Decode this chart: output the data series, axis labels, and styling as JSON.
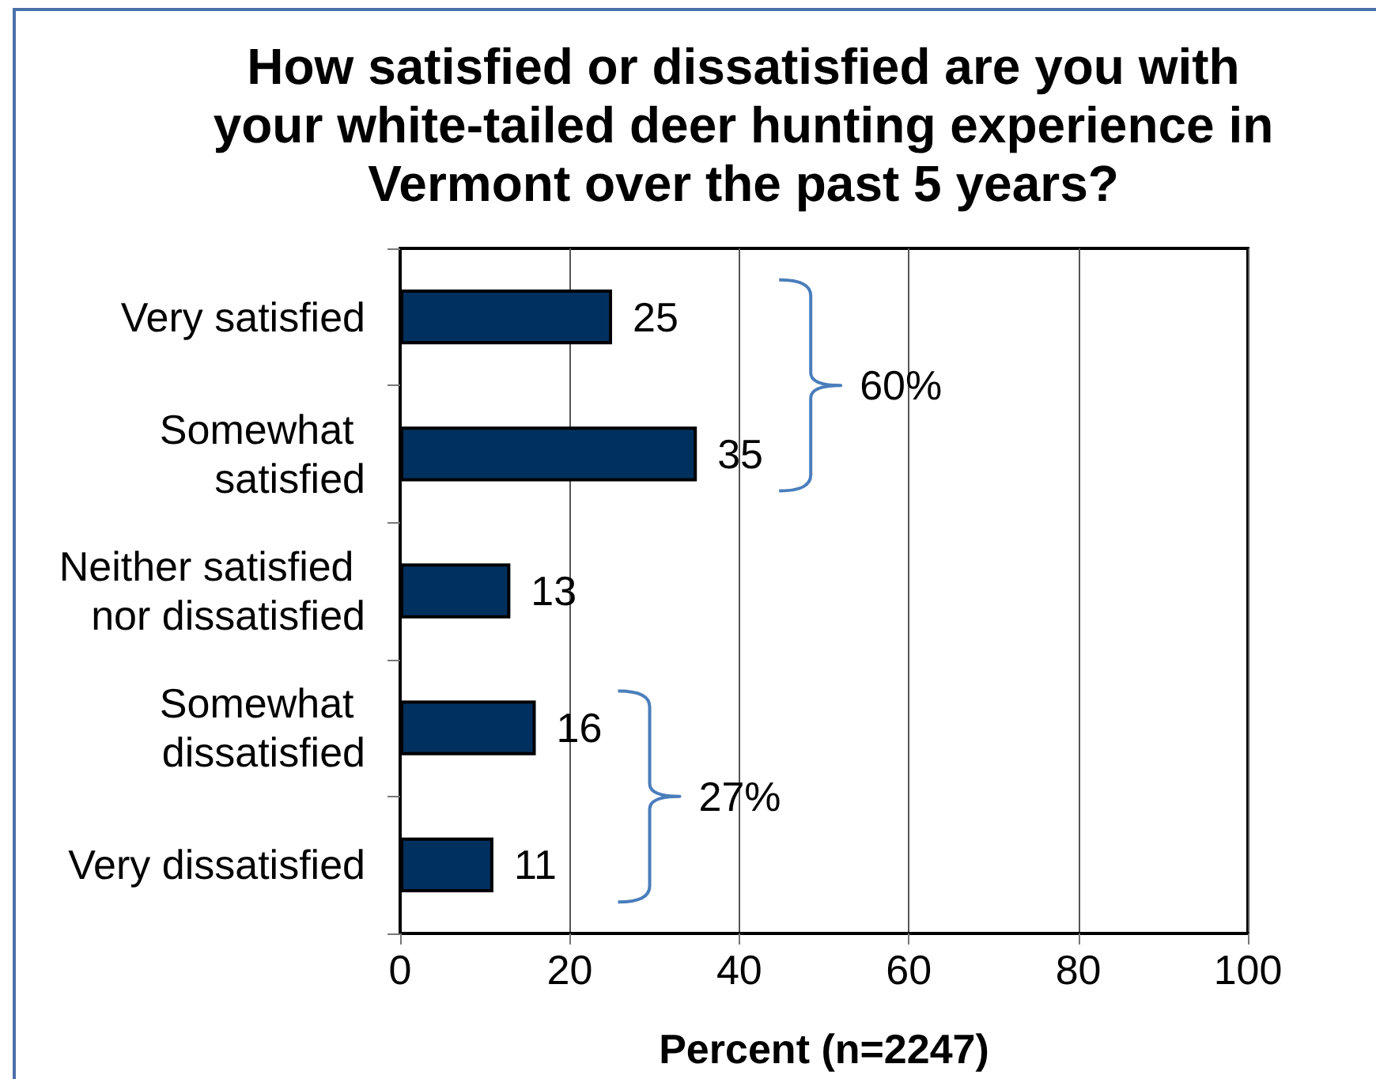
{
  "chart_data": {
    "type": "bar",
    "orientation": "horizontal",
    "title": "How satisfied or dissatisfied are you with your white-tailed deer hunting experience in Vermont over the past 5 years?",
    "xlabel": "Percent (n=2247)",
    "categories": [
      "Very satisfied",
      "Somewhat satisfied",
      "Neither satisfied nor dissatisfied",
      "Somewhat dissatisfied",
      "Very dissatisfied"
    ],
    "values": [
      25,
      35,
      13,
      16,
      11
    ],
    "color": "#00305e",
    "xlim": [
      0,
      100
    ],
    "xticks": [
      0,
      20,
      40,
      60,
      80,
      100
    ],
    "grid": "x",
    "data_labels": true,
    "annotations": [
      "60%",
      "27%"
    ]
  }
}
